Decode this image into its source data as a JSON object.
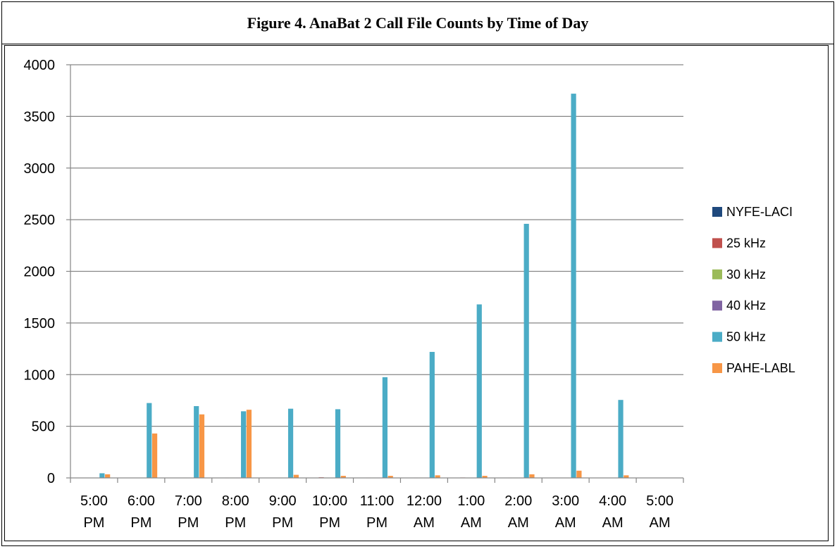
{
  "chart_data": {
    "type": "bar",
    "title": "Figure 4.  AnaBat 2 Call File Counts by Time of Day",
    "xlabel": "",
    "ylabel": "",
    "ylim": [
      0,
      4000
    ],
    "yticks": [
      "0",
      "500",
      "1000",
      "1500",
      "2000",
      "2500",
      "3000",
      "3500",
      "4000"
    ],
    "grid": true,
    "legend_position": "right",
    "categories": [
      [
        "5:00",
        "PM"
      ],
      [
        "6:00",
        "PM"
      ],
      [
        "7:00",
        "PM"
      ],
      [
        "8:00",
        "PM"
      ],
      [
        "9:00",
        "PM"
      ],
      [
        "10:00",
        "PM"
      ],
      [
        "11:00",
        "PM"
      ],
      [
        "12:00",
        "AM"
      ],
      [
        "1:00",
        "AM"
      ],
      [
        "2:00",
        "AM"
      ],
      [
        "3:00",
        "AM"
      ],
      [
        "4:00",
        "AM"
      ],
      [
        "5:00",
        "AM"
      ]
    ],
    "series": [
      {
        "name": "NYFE-LACI",
        "color": "#1f497d",
        "values": [
          0,
          0,
          0,
          0,
          0,
          0,
          0,
          0,
          0,
          0,
          0,
          0,
          0
        ]
      },
      {
        "name": "25 kHz",
        "color": "#c0504d",
        "values": [
          0,
          0,
          3,
          2,
          3,
          6,
          2,
          2,
          4,
          2,
          0,
          0,
          0
        ]
      },
      {
        "name": "30 kHz",
        "color": "#9bbb59",
        "values": [
          0,
          0,
          2,
          2,
          2,
          2,
          2,
          2,
          2,
          2,
          0,
          0,
          0
        ]
      },
      {
        "name": "40 kHz",
        "color": "#8064a2",
        "values": [
          0,
          0,
          3,
          2,
          3,
          3,
          2,
          2,
          2,
          2,
          0,
          0,
          0
        ]
      },
      {
        "name": "50 kHz",
        "color": "#4bacc6",
        "values": [
          45,
          725,
          695,
          645,
          670,
          665,
          975,
          1220,
          1680,
          2460,
          3720,
          755,
          0
        ]
      },
      {
        "name": "PAHE-LABL",
        "color": "#f79646",
        "values": [
          35,
          430,
          615,
          660,
          30,
          20,
          20,
          25,
          20,
          35,
          70,
          25,
          0
        ]
      }
    ]
  }
}
